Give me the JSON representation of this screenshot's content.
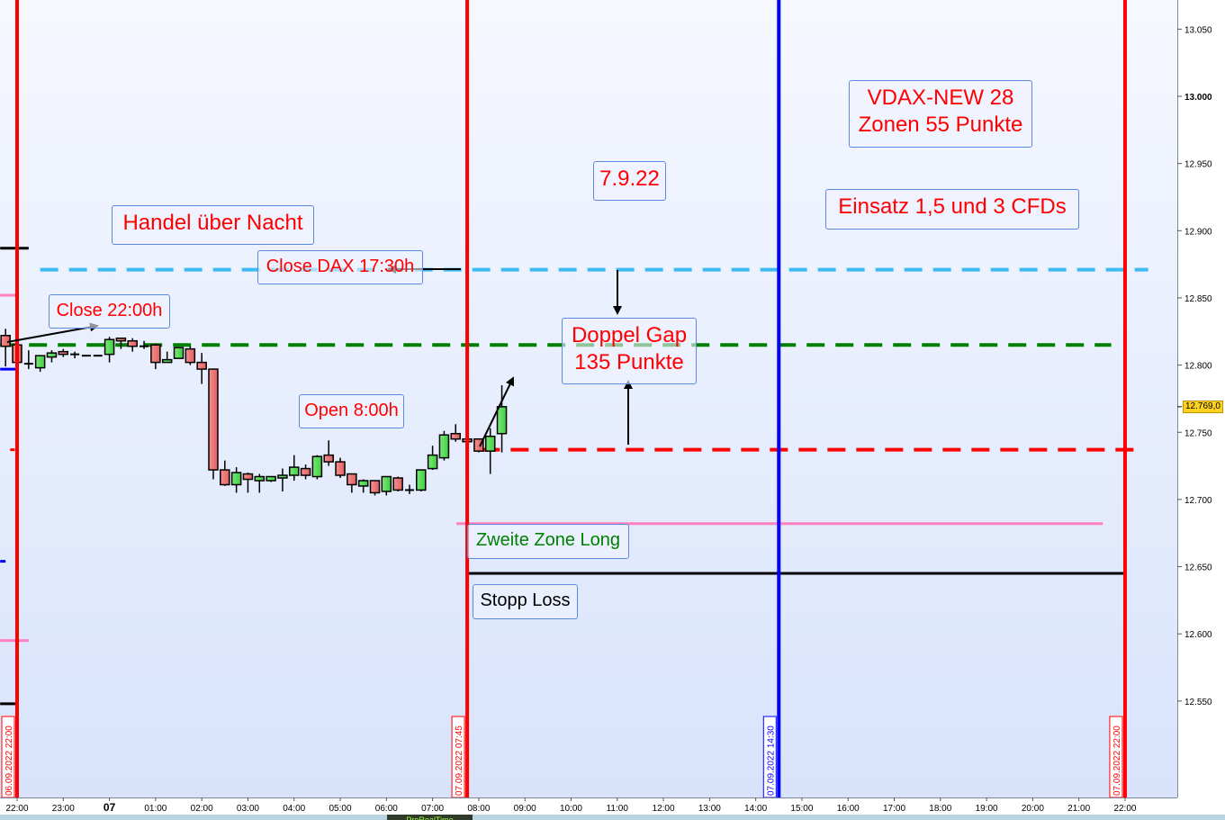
{
  "chart_data": {
    "type": "candlestick",
    "instrument_timeframe_minutes": 15,
    "y_axis": {
      "ylim": [
        12500,
        13075
      ],
      "ticks": [
        "12.550",
        "12.600",
        "12.650",
        "12.700",
        "12.750",
        "12.800",
        "12.850",
        "12.900",
        "12.950",
        "13.000",
        "13.050"
      ],
      "tick_values": [
        12550,
        12600,
        12650,
        12700,
        12750,
        12800,
        12850,
        12900,
        12950,
        13000,
        13050
      ],
      "bold_tick": "13.000",
      "current_price_label": "12.769,0",
      "current_price": 12769
    },
    "x_axis": {
      "ticks": [
        "22:00",
        "23:00",
        "07",
        "01:00",
        "02:00",
        "03:00",
        "04:00",
        "05:00",
        "06:00",
        "07:00",
        "08:00",
        "09:00",
        "10:00",
        "11:00",
        "12:00",
        "13:00",
        "14:00",
        "15:00",
        "16:00",
        "17:00",
        "18:00",
        "19:00",
        "20:00",
        "21:00",
        "22:00"
      ],
      "bold_tick": "07"
    },
    "candles": [
      {
        "t": "06.09.2022 21:45",
        "o": 12822,
        "h": 12827,
        "l": 12799,
        "c": 12814
      },
      {
        "t": "06.09.2022 22:00",
        "o": 12815,
        "h": 12816,
        "l": 12800,
        "c": 12802
      },
      {
        "t": "06.09.2022 22:15",
        "o": 12801,
        "h": 12811,
        "l": 12797,
        "c": 12800
      },
      {
        "t": "06.09.2022 22:30",
        "o": 12798,
        "h": 12807,
        "l": 12795,
        "c": 12807
      },
      {
        "t": "06.09.2022 22:45",
        "o": 12806,
        "h": 12811,
        "l": 12802,
        "c": 12809
      },
      {
        "t": "06.09.2022 23:00",
        "o": 12810,
        "h": 12812,
        "l": 12806,
        "c": 12808
      },
      {
        "t": "06.09.2022 23:15",
        "o": 12808,
        "h": 12810,
        "l": 12805,
        "c": 12808
      },
      {
        "t": "06.09.2022 23:30",
        "o": 12807,
        "h": 12807.5,
        "l": 12806.5,
        "c": 12807
      },
      {
        "t": "06.09.2022 23:45",
        "o": 12807,
        "h": 12807.5,
        "l": 12806.5,
        "c": 12807
      },
      {
        "t": "07.09.2022 00:00",
        "o": 12808,
        "h": 12821,
        "l": 12802,
        "c": 12819
      },
      {
        "t": "07.09.2022 00:15",
        "o": 12820,
        "h": 12820,
        "l": 12812,
        "c": 12818
      },
      {
        "t": "07.09.2022 00:30",
        "o": 12818,
        "h": 12820,
        "l": 12810,
        "c": 12814
      },
      {
        "t": "07.09.2022 00:45",
        "o": 12814,
        "h": 12818,
        "l": 12812,
        "c": 12814
      },
      {
        "t": "07.09.2022 01:00",
        "o": 12815,
        "h": 12816,
        "l": 12797,
        "c": 12802
      },
      {
        "t": "07.09.2022 01:15",
        "o": 12802,
        "h": 12810,
        "l": 12802,
        "c": 12804
      },
      {
        "t": "07.09.2022 01:30",
        "o": 12805,
        "h": 12813.5,
        "l": 12805,
        "c": 12813
      },
      {
        "t": "07.09.2022 01:45",
        "o": 12812,
        "h": 12814,
        "l": 12800,
        "c": 12802
      },
      {
        "t": "07.09.2022 02:00",
        "o": 12802,
        "h": 12809,
        "l": 12786,
        "c": 12797
      },
      {
        "t": "07.09.2022 02:15",
        "o": 12797,
        "h": 12797,
        "l": 12715,
        "c": 12722
      },
      {
        "t": "07.09.2022 02:30",
        "o": 12722,
        "h": 12729,
        "l": 12710,
        "c": 12711
      },
      {
        "t": "07.09.2022 02:45",
        "o": 12711,
        "h": 12724,
        "l": 12705,
        "c": 12720
      },
      {
        "t": "07.09.2022 03:00",
        "o": 12719,
        "h": 12720,
        "l": 12705,
        "c": 12715
      },
      {
        "t": "07.09.2022 03:15",
        "o": 12714,
        "h": 12719,
        "l": 12705,
        "c": 12717
      },
      {
        "t": "07.09.2022 03:30",
        "o": 12714,
        "h": 12717,
        "l": 12713,
        "c": 12717
      },
      {
        "t": "07.09.2022 03:45",
        "o": 12716,
        "h": 12723,
        "l": 12706,
        "c": 12718
      },
      {
        "t": "07.09.2022 04:00",
        "o": 12718,
        "h": 12733,
        "l": 12714,
        "c": 12724
      },
      {
        "t": "07.09.2022 04:15",
        "o": 12723,
        "h": 12726,
        "l": 12715,
        "c": 12718
      },
      {
        "t": "07.09.2022 04:30",
        "o": 12717,
        "h": 12733,
        "l": 12715,
        "c": 12732
      },
      {
        "t": "07.09.2022 04:45",
        "o": 12733,
        "h": 12744,
        "l": 12725,
        "c": 12728
      },
      {
        "t": "07.09.2022 05:00",
        "o": 12728,
        "h": 12731,
        "l": 12716,
        "c": 12718
      },
      {
        "t": "07.09.2022 05:15",
        "o": 12719,
        "h": 12719,
        "l": 12705,
        "c": 12711
      },
      {
        "t": "07.09.2022 05:30",
        "o": 12710,
        "h": 12715,
        "l": 12705,
        "c": 12714
      },
      {
        "t": "07.09.2022 05:45",
        "o": 12714,
        "h": 12714,
        "l": 12703,
        "c": 12705
      },
      {
        "t": "07.09.2022 06:00",
        "o": 12706,
        "h": 12717,
        "l": 12703,
        "c": 12717
      },
      {
        "t": "07.09.2022 06:15",
        "o": 12716,
        "h": 12717,
        "l": 12706,
        "c": 12707
      },
      {
        "t": "07.09.2022 06:30",
        "o": 12707,
        "h": 12711,
        "l": 12704,
        "c": 12707
      },
      {
        "t": "07.09.2022 06:45",
        "o": 12707,
        "h": 12722,
        "l": 12706,
        "c": 12722
      },
      {
        "t": "07.09.2022 07:00",
        "o": 12723,
        "h": 12740,
        "l": 12722,
        "c": 12733
      },
      {
        "t": "07.09.2022 07:15",
        "o": 12731,
        "h": 12751,
        "l": 12729,
        "c": 12748
      },
      {
        "t": "07.09.2022 07:30",
        "o": 12749,
        "h": 12756,
        "l": 12743,
        "c": 12745
      },
      {
        "t": "07.09.2022 07:45",
        "o": 12745,
        "h": 12749,
        "l": 12737,
        "c": 12743
      },
      {
        "t": "07.09.2022 08:00",
        "o": 12745,
        "h": 12745,
        "l": 12735,
        "c": 12736
      },
      {
        "t": "07.09.2022 08:15",
        "o": 12736,
        "h": 12753,
        "l": 12719,
        "c": 12747
      },
      {
        "t": "07.09.2022 08:30",
        "o": 12749,
        "h": 12785,
        "l": 12735,
        "c": 12769
      }
    ],
    "horizontal_lines": [
      {
        "price": 12871,
        "color": "#3cbcf0",
        "style": "dashed",
        "from": "06.09.2022 22:30",
        "to": "07.09.2022 22:30"
      },
      {
        "price": 12815,
        "color": "#008000",
        "style": "dashed",
        "from": "06.09.2022 21:38",
        "to": "07.09.2022 21:42"
      },
      {
        "price": 12737,
        "color": "#ff0000",
        "style": "dashed",
        "from": "07.09.2022 08:04",
        "to": "07.09.2022 22:14"
      },
      {
        "price": 12682,
        "color": "#ff80c0",
        "style": "solid",
        "from": "07.09.2022 07:31",
        "to": "07.09.2022 21:31"
      },
      {
        "price": 12645,
        "color": "#000000",
        "style": "solid",
        "from": "07.09.2022 07:45",
        "to": "07.09.2022 22:00"
      },
      {
        "price": 12887,
        "color": "#000000",
        "style": "solid",
        "from": "06.09.2022 21:38",
        "to": "06.09.2022 22:15"
      },
      {
        "price": 12852,
        "color": "#ff80c0",
        "style": "solid",
        "from": "06.09.2022 21:38",
        "to": "06.09.2022 22:00"
      },
      {
        "price": 12797,
        "color": "#0000ff",
        "style": "solid",
        "from": "06.09.2022 21:38",
        "to": "06.09.2022 22:00"
      },
      {
        "price": 12654,
        "color": "#0000ff",
        "style": "solid",
        "from": "06.09.2022 21:38",
        "to": "06.09.2022 21:45"
      },
      {
        "price": 12595,
        "color": "#ff80c0",
        "style": "solid",
        "from": "06.09.2022 21:38",
        "to": "06.09.2022 22:15"
      },
      {
        "price": 12548,
        "color": "#000000",
        "style": "solid",
        "from": "06.09.2022 21:38",
        "to": "06.09.2022 22:00"
      },
      {
        "price": 12737,
        "color": "#ff0000",
        "style": "solid",
        "from": "06.09.2022 21:51",
        "to": "06.09.2022 21:57"
      }
    ],
    "vertical_lines": [
      {
        "time": "06.09.2022 22:00",
        "label": "06.09.2022 22:00",
        "color": "#ff0000"
      },
      {
        "time": "07.09.2022 07:45",
        "label": "07.09.2022 07:45",
        "color": "#ff0000"
      },
      {
        "time": "07.09.2022 14:30",
        "label": "07.09.2022 14:30",
        "color": "#0000ff"
      },
      {
        "time": "07.09.2022 22:00",
        "label": "07.09.2022 22:00",
        "color": "#ff0000"
      }
    ],
    "colors": {
      "up": "#4fd94f",
      "down": "#ee6e6e",
      "background_top": "#f6f8ff",
      "background_bottom": "#d8e3fb"
    }
  },
  "annotations": {
    "handel": "Handel über Nacht",
    "close_dax": "Close DAX 17:30h",
    "close_22": "Close 22:00h",
    "open_8": "Open 8:00h",
    "date": "7.9.22",
    "gap": "Doppel Gap\n135 Punkte",
    "vdax": "VDAX-NEW 28\nZonen 55 Punkte",
    "einsatz": "Einsatz 1,5 und 3 CFDs",
    "zweite_zone": "Zweite Zone Long",
    "stopp": "Stopp Loss"
  },
  "bottom_bar": {
    "tab_label": "ProRealTime"
  }
}
